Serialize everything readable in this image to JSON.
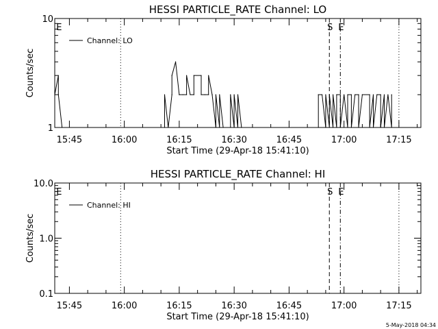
{
  "footer": {
    "timestamp": "5-May-2018 04:34"
  },
  "chart_data": [
    {
      "type": "line",
      "title": "HESSI PARTICLE_RATE Channel: LO",
      "xlabel": "Start Time (29-Apr-18 15:41:10)",
      "ylabel": "Counts/sec",
      "y_scale": "log",
      "ylim": [
        1,
        10
      ],
      "y_ticks": [
        "1",
        "10"
      ],
      "x_ticks": [
        "15:45",
        "16:00",
        "16:15",
        "16:30",
        "16:45",
        "17:00",
        "17:15"
      ],
      "xlim": [
        "15:41",
        "17:21"
      ],
      "legend": {
        "label": "Channel: LO",
        "position": "top-left"
      },
      "markers": [
        {
          "label": "E",
          "time": "15:42"
        },
        {
          "label": "S",
          "time": "16:56"
        },
        {
          "label": "E",
          "time": "16:59"
        }
      ],
      "vertical_lines": [
        {
          "time": "15:59",
          "style": "dotted"
        },
        {
          "time": "16:56",
          "style": "dashed"
        },
        {
          "time": "16:59",
          "style": "dashdot"
        },
        {
          "time": "17:15",
          "style": "dotted"
        }
      ],
      "series": [
        {
          "x": [
            "15:41",
            "15:42",
            "15:42",
            "15:43",
            "16:11",
            "16:11",
            "16:12",
            "16:13",
            "16:13",
            "16:14",
            "16:14",
            "16:15",
            "16:15",
            "16:16",
            "16:17",
            "16:17",
            "16:18",
            "16:19",
            "16:19",
            "16:21",
            "16:21",
            "16:22",
            "16:23",
            "16:23",
            "16:24",
            "16:24",
            "16:25",
            "16:25",
            "16:26",
            "16:26",
            "16:27",
            "16:29",
            "16:29",
            "16:30",
            "16:30",
            "16:31",
            "16:31",
            "16:32",
            "16:53",
            "16:53",
            "16:54",
            "16:55",
            "16:55",
            "16:56",
            "16:56",
            "16:57",
            "16:57",
            "16:58",
            "16:58",
            "16:59",
            "16:59",
            "17:00",
            "17:01",
            "17:01",
            "17:02",
            "17:02",
            "17:03",
            "17:04",
            "17:04",
            "17:05",
            "17:05",
            "17:07",
            "17:07",
            "17:08",
            "17:08",
            "17:09",
            "17:10",
            "17:10",
            "17:11",
            "17:11",
            "17:12",
            "17:13",
            "17:13"
          ],
          "y": [
            2,
            3,
            2,
            1,
            1,
            2,
            1,
            2,
            3,
            4,
            4,
            2,
            2,
            2,
            2,
            3,
            2,
            2,
            3,
            3,
            2,
            2,
            2,
            3,
            2,
            2,
            1,
            2,
            1,
            2,
            1,
            1,
            2,
            1,
            2,
            1,
            2,
            1,
            1,
            2,
            2,
            1,
            2,
            1,
            2,
            1,
            2,
            1,
            2,
            2,
            1,
            2,
            1,
            2,
            2,
            1,
            2,
            2,
            1,
            2,
            2,
            2,
            1,
            2,
            1,
            2,
            2,
            1,
            2,
            1,
            2,
            1,
            2
          ]
        }
      ]
    },
    {
      "type": "line",
      "title": "HESSI PARTICLE_RATE Channel: HI",
      "xlabel": "Start Time (29-Apr-18 15:41:10)",
      "ylabel": "Counts/sec",
      "y_scale": "log",
      "ylim": [
        0.1,
        10
      ],
      "y_ticks": [
        "0.1",
        "1.0",
        "10.0"
      ],
      "x_ticks": [
        "15:45",
        "16:00",
        "16:15",
        "16:30",
        "16:45",
        "17:00",
        "17:15"
      ],
      "xlim": [
        "15:41",
        "17:21"
      ],
      "legend": {
        "label": "Channel: HI",
        "position": "top-left"
      },
      "markers": [
        {
          "label": "E",
          "time": "15:42"
        },
        {
          "label": "S",
          "time": "16:56"
        },
        {
          "label": "E",
          "time": "16:59"
        }
      ],
      "vertical_lines": [
        {
          "time": "15:59",
          "style": "dotted"
        },
        {
          "time": "16:56",
          "style": "dashed"
        },
        {
          "time": "16:59",
          "style": "dashdot"
        },
        {
          "time": "17:15",
          "style": "dotted"
        }
      ],
      "series": [
        {
          "x": [],
          "y": []
        }
      ]
    }
  ]
}
